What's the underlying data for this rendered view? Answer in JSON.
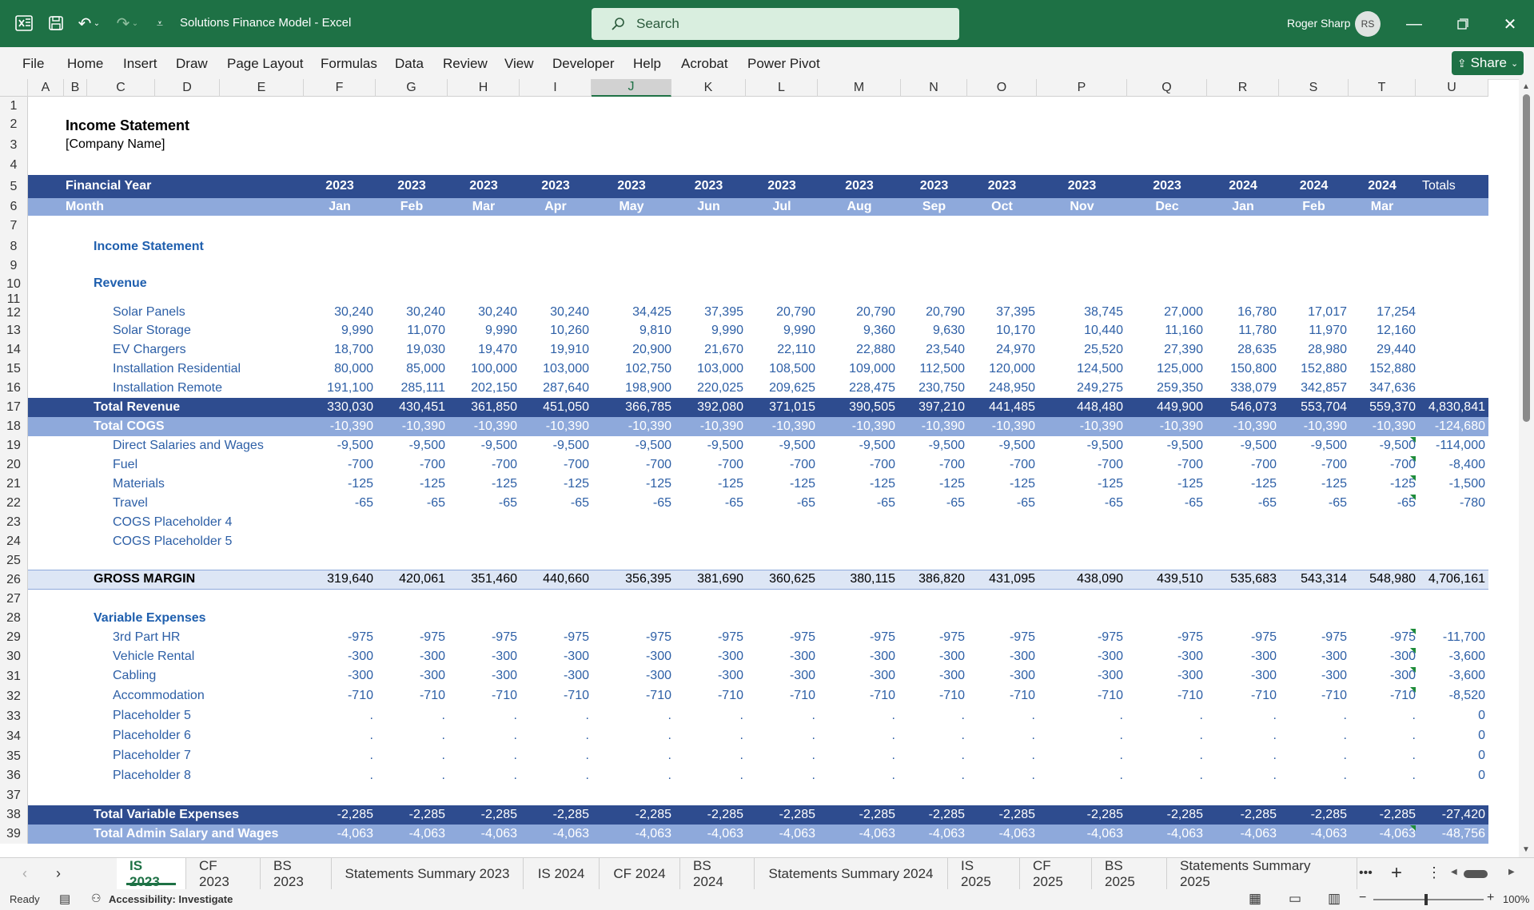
{
  "app": {
    "title": "Solutions Finance Model  -  Excel",
    "search_placeholder": "Search",
    "user": "Roger Sharp",
    "initials": "RS",
    "share": "Share"
  },
  "menu": [
    "File",
    "Home",
    "Insert",
    "Draw",
    "Page Layout",
    "Formulas",
    "Data",
    "Review",
    "View",
    "Developer",
    "Help",
    "Acrobat",
    "Power Pivot"
  ],
  "columns": [
    "A",
    "B",
    "C",
    "D",
    "E",
    "F",
    "G",
    "H",
    "I",
    "J",
    "K",
    "L",
    "M",
    "N",
    "O",
    "P",
    "Q",
    "R",
    "S",
    "T",
    "U"
  ],
  "rows": [
    "1",
    "2",
    "3",
    "4",
    "5",
    "6",
    "7",
    "8",
    "9",
    "10",
    "11",
    "12",
    "13",
    "14",
    "15",
    "16",
    "17",
    "18",
    "19",
    "20",
    "21",
    "22",
    "23",
    "24",
    "25",
    "26",
    "27",
    "28",
    "29",
    "30",
    "31",
    "32",
    "33",
    "34",
    "35",
    "36",
    "37",
    "38",
    "39"
  ],
  "sheet": {
    "title": "Income Statement",
    "company": "[Company Name]",
    "fy_label": "Financial Year",
    "month_label": "Month",
    "totals_label": "Totals",
    "years": [
      "2023",
      "2023",
      "2023",
      "2023",
      "2023",
      "2023",
      "2023",
      "2023",
      "2023",
      "2023",
      "2023",
      "2023",
      "2024",
      "2024",
      "2024"
    ],
    "months": [
      "Jan",
      "Feb",
      "Mar",
      "Apr",
      "May",
      "Jun",
      "Jul",
      "Aug",
      "Sep",
      "Oct",
      "Nov",
      "Dec",
      "Jan",
      "Feb",
      "Mar"
    ],
    "section_is": "Income Statement",
    "section_rev": "Revenue",
    "section_var": "Variable Expenses",
    "revenue": [
      {
        "label": "Solar Panels",
        "values": [
          "30,240",
          "30,240",
          "30,240",
          "30,240",
          "34,425",
          "37,395",
          "20,790",
          "20,790",
          "20,790",
          "37,395",
          "38,745",
          "27,000",
          "16,780",
          "17,017",
          "17,254"
        ],
        "total": ""
      },
      {
        "label": "Solar Storage",
        "values": [
          "9,990",
          "11,070",
          "9,990",
          "10,260",
          "9,810",
          "9,990",
          "9,990",
          "9,360",
          "9,630",
          "10,170",
          "10,440",
          "11,160",
          "11,780",
          "11,970",
          "12,160"
        ],
        "total": ""
      },
      {
        "label": "EV Chargers",
        "values": [
          "18,700",
          "19,030",
          "19,470",
          "19,910",
          "20,900",
          "21,670",
          "22,110",
          "22,880",
          "23,540",
          "24,970",
          "25,520",
          "27,390",
          "28,635",
          "28,980",
          "29,440"
        ],
        "total": ""
      },
      {
        "label": "Installation Residential",
        "values": [
          "80,000",
          "85,000",
          "100,000",
          "103,000",
          "102,750",
          "103,000",
          "108,500",
          "109,000",
          "112,500",
          "120,000",
          "124,500",
          "125,000",
          "150,800",
          "152,880",
          "152,880"
        ],
        "total": ""
      },
      {
        "label": "Installation Remote",
        "values": [
          "191,100",
          "285,111",
          "202,150",
          "287,640",
          "198,900",
          "220,025",
          "209,625",
          "228,475",
          "230,750",
          "248,950",
          "249,275",
          "259,350",
          "338,079",
          "342,857",
          "347,636"
        ],
        "total": ""
      }
    ],
    "total_revenue": {
      "label": "Total Revenue",
      "values": [
        "330,030",
        "430,451",
        "361,850",
        "451,050",
        "366,785",
        "392,080",
        "371,015",
        "390,505",
        "397,210",
        "441,485",
        "448,480",
        "449,900",
        "546,073",
        "553,704",
        "559,370"
      ],
      "total": "4,830,841"
    },
    "total_cogs": {
      "label": "Total COGS",
      "values": [
        "-10,390",
        "-10,390",
        "-10,390",
        "-10,390",
        "-10,390",
        "-10,390",
        "-10,390",
        "-10,390",
        "-10,390",
        "-10,390",
        "-10,390",
        "-10,390",
        "-10,390",
        "-10,390",
        "-10,390"
      ],
      "total": "-124,680"
    },
    "cogs": [
      {
        "label": "Direct Salaries and Wages",
        "values": [
          "-9,500",
          "-9,500",
          "-9,500",
          "-9,500",
          "-9,500",
          "-9,500",
          "-9,500",
          "-9,500",
          "-9,500",
          "-9,500",
          "-9,500",
          "-9,500",
          "-9,500",
          "-9,500",
          "-9,500"
        ],
        "total": "-114,000"
      },
      {
        "label": "Fuel",
        "values": [
          "-700",
          "-700",
          "-700",
          "-700",
          "-700",
          "-700",
          "-700",
          "-700",
          "-700",
          "-700",
          "-700",
          "-700",
          "-700",
          "-700",
          "-700"
        ],
        "total": "-8,400"
      },
      {
        "label": "Materials",
        "values": [
          "-125",
          "-125",
          "-125",
          "-125",
          "-125",
          "-125",
          "-125",
          "-125",
          "-125",
          "-125",
          "-125",
          "-125",
          "-125",
          "-125",
          "-125"
        ],
        "total": "-1,500"
      },
      {
        "label": "Travel",
        "values": [
          "-65",
          "-65",
          "-65",
          "-65",
          "-65",
          "-65",
          "-65",
          "-65",
          "-65",
          "-65",
          "-65",
          "-65",
          "-65",
          "-65",
          "-65"
        ],
        "total": "-780"
      },
      {
        "label": "COGS Placeholder 4",
        "values": [
          "",
          "",
          "",
          "",
          "",
          "",
          "",
          "",
          "",
          "",
          "",
          "",
          "",
          "",
          ""
        ],
        "total": ""
      },
      {
        "label": "COGS Placeholder 5",
        "values": [
          "",
          "",
          "",
          "",
          "",
          "",
          "",
          "",
          "",
          "",
          "",
          "",
          "",
          "",
          ""
        ],
        "total": ""
      }
    ],
    "gross_margin": {
      "label": "GROSS MARGIN",
      "values": [
        "319,640",
        "420,061",
        "351,460",
        "440,660",
        "356,395",
        "381,690",
        "360,625",
        "380,115",
        "386,820",
        "431,095",
        "438,090",
        "439,510",
        "535,683",
        "543,314",
        "548,980"
      ],
      "total": "4,706,161"
    },
    "var": [
      {
        "label": "3rd Part HR",
        "values": [
          "-975",
          "-975",
          "-975",
          "-975",
          "-975",
          "-975",
          "-975",
          "-975",
          "-975",
          "-975",
          "-975",
          "-975",
          "-975",
          "-975",
          "-975"
        ],
        "total": "-11,700"
      },
      {
        "label": "Vehicle Rental",
        "values": [
          "-300",
          "-300",
          "-300",
          "-300",
          "-300",
          "-300",
          "-300",
          "-300",
          "-300",
          "-300",
          "-300",
          "-300",
          "-300",
          "-300",
          "-300"
        ],
        "total": "-3,600"
      },
      {
        "label": "Cabling",
        "values": [
          "-300",
          "-300",
          "-300",
          "-300",
          "-300",
          "-300",
          "-300",
          "-300",
          "-300",
          "-300",
          "-300",
          "-300",
          "-300",
          "-300",
          "-300"
        ],
        "total": "-3,600"
      },
      {
        "label": "Accommodation",
        "values": [
          "-710",
          "-710",
          "-710",
          "-710",
          "-710",
          "-710",
          "-710",
          "-710",
          "-710",
          "-710",
          "-710",
          "-710",
          "-710",
          "-710",
          "-710"
        ],
        "total": "-8,520"
      },
      {
        "label": "Placeholder 5",
        "values": [
          ".",
          ".",
          ".",
          ".",
          ".",
          ".",
          ".",
          ".",
          ".",
          ".",
          ".",
          ".",
          ".",
          ".",
          "."
        ],
        "total": "0"
      },
      {
        "label": "Placeholder 6",
        "values": [
          ".",
          ".",
          ".",
          ".",
          ".",
          ".",
          ".",
          ".",
          ".",
          ".",
          ".",
          ".",
          ".",
          ".",
          "."
        ],
        "total": "0"
      },
      {
        "label": "Placeholder 7",
        "values": [
          ".",
          ".",
          ".",
          ".",
          ".",
          ".",
          ".",
          ".",
          ".",
          ".",
          ".",
          ".",
          ".",
          ".",
          "."
        ],
        "total": "0"
      },
      {
        "label": "Placeholder 8",
        "values": [
          ".",
          ".",
          ".",
          ".",
          ".",
          ".",
          ".",
          ".",
          ".",
          ".",
          ".",
          ".",
          ".",
          ".",
          "."
        ],
        "total": "0"
      }
    ],
    "total_var": {
      "label": "Total Variable Expenses",
      "values": [
        "-2,285",
        "-2,285",
        "-2,285",
        "-2,285",
        "-2,285",
        "-2,285",
        "-2,285",
        "-2,285",
        "-2,285",
        "-2,285",
        "-2,285",
        "-2,285",
        "-2,285",
        "-2,285",
        "-2,285"
      ],
      "total": "-27,420"
    },
    "total_admin": {
      "label": "Total Admin Salary and Wages",
      "values": [
        "-4,063",
        "-4,063",
        "-4,063",
        "-4,063",
        "-4,063",
        "-4,063",
        "-4,063",
        "-4,063",
        "-4,063",
        "-4,063",
        "-4,063",
        "-4,063",
        "-4,063",
        "-4,063",
        "-4,063"
      ],
      "total": "-48,756"
    }
  },
  "tabs": [
    "IS 2023",
    "CF 2023",
    "BS 2023",
    "Statements Summary 2023",
    "IS 2024",
    "CF 2024",
    "BS 2024",
    "Statements Summary 2024",
    "IS 2025",
    "CF 2025",
    "BS 2025",
    "Statements Summary 2025"
  ],
  "status": {
    "ready": "Ready",
    "accessibility": "Accessibility: Investigate",
    "zoom": "100%"
  },
  "colors": {
    "title_bar": "#1e7145",
    "header_dark": "#2e4c8f",
    "header_light": "#8ea9db",
    "gross_margin_bg": "#dde6f5"
  }
}
